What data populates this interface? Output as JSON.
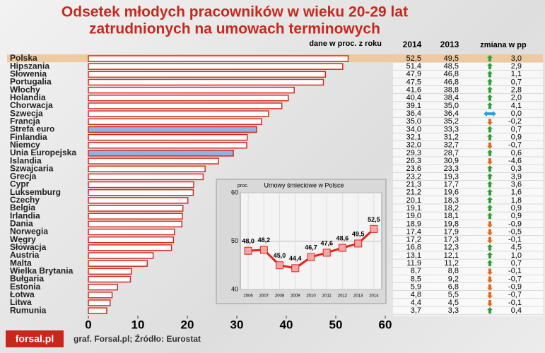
{
  "chart_data": [
    {
      "type": "hbar",
      "title_lines": [
        "Odsetek młodych pracowników w wieku 20-29 lat",
        "zatrudnionych na umowach terminowych"
      ],
      "subtitle": "dane w proc. z roku",
      "categories": [
        "Polska",
        "Hipszania",
        "Słowenia",
        "Portugalia",
        "Włochy",
        "Holandia",
        "Chorwacja",
        "Szwecja",
        "Francja",
        "Strefa euro",
        "Finlandia",
        "Niemcy",
        "Unia Europejska",
        "Islandia",
        "Szwajcaria",
        "Grecja",
        "Cypr",
        "Luksemburg",
        "Czechy",
        "Belgia",
        "Irlandia",
        "Dania",
        "Norwegia",
        "Węgry",
        "Słowacja",
        "Austria",
        "Malta",
        "Wielka Brytania",
        "Bułgaria",
        "Estonia",
        "Łotwa",
        "Litwa",
        "Rumunia"
      ],
      "series": [
        {
          "name": "2014",
          "color": "#d42a1e",
          "values": [
            52.5,
            51.4,
            47.9,
            47.5,
            41.6,
            40.4,
            39.1,
            36.4,
            35.0,
            34.0,
            32.1,
            32.0,
            29.3,
            26.3,
            23.6,
            23.2,
            21.3,
            21.2,
            20.1,
            19.1,
            19.0,
            18.9,
            17.4,
            17.2,
            16.8,
            13.1,
            11.9,
            8.7,
            8.5,
            5.9,
            4.8,
            4.4,
            3.7
          ],
          "value_labels": [
            "52,5",
            "51,4",
            "47,9",
            "47,5",
            "41,6",
            "40,4",
            "39,1",
            "36,4",
            "35,0",
            "34,0",
            "32,1",
            "32,0",
            "29,3",
            "26,3",
            "23,6",
            "23,2",
            "21,3",
            "21,2",
            "20,1",
            "19,1",
            "19,0",
            "18,9",
            "17,4",
            "17,2",
            "16,8",
            "13,1",
            "11,9",
            "8,7",
            "8,5",
            "5,9",
            "4,8",
            "4,4",
            "3,7"
          ]
        },
        {
          "name": "2013",
          "values": [
            49.5,
            48.5,
            46.8,
            46.8,
            38.8,
            38.4,
            35.0,
            36.4,
            35.2,
            33.3,
            31.2,
            32.7,
            28.7,
            30.9,
            23.3,
            19.3,
            17.7,
            19.6,
            18.3,
            18.2,
            18.1,
            19.8,
            17.9,
            17.3,
            12.3,
            12.1,
            11.2,
            8.8,
            9.2,
            6.8,
            5.5,
            4.5,
            3.3
          ],
          "value_labels": [
            "49,5",
            "48,5",
            "46,8",
            "46,8",
            "38,8",
            "38,4",
            "35,0",
            "36,4",
            "35,2",
            "33,3",
            "31,2",
            "32,7",
            "28,7",
            "30,9",
            "23,3",
            "19,3",
            "17,7",
            "19,6",
            "18,3",
            "18,2",
            "18,1",
            "19,8",
            "17,9",
            "17,3",
            "12,3",
            "12,1",
            "11,2",
            "8,8",
            "9,2",
            "6,8",
            "5,5",
            "4,5",
            "3,3"
          ]
        }
      ],
      "change": {
        "name": "zmiana w pp",
        "values": [
          3.0,
          2.9,
          1.1,
          0.7,
          2.8,
          2.0,
          4.1,
          0.0,
          -0.2,
          0.7,
          0.9,
          -0.7,
          0.6,
          -4.6,
          0.3,
          3.9,
          3.6,
          1.6,
          1.8,
          0.9,
          0.9,
          -0.9,
          -0.5,
          -0.1,
          4.5,
          1.0,
          0.7,
          -0.1,
          -0.7,
          -0.9,
          -0.7,
          -0.1,
          0.4
        ],
        "value_labels": [
          "3,0",
          "2,9",
          "1,1",
          "0,7",
          "2,8",
          "2,0",
          "4,1",
          "0,0",
          "-0,2",
          "0,7",
          "0,9",
          "-0,7",
          "0,6",
          "-4,6",
          "0,3",
          "3,9",
          "3,6",
          "1,6",
          "1,8",
          "0,9",
          "0,9",
          "-0,9",
          "-0,5",
          "-0,1",
          "4,5",
          "1,0",
          "0,7",
          "-0,1",
          "-0,7",
          "-0,9",
          "-0,7",
          "-0,1",
          "0,4"
        ],
        "up_color": "#2e9e3a",
        "down_color": "#e06a1c",
        "zero_color": "#2a9fe0"
      },
      "highlight_indices": [
        9,
        12
      ],
      "highlight_color": "#8fb4e3",
      "xlim": [
        0,
        60
      ],
      "xticks": [
        0,
        10,
        20,
        30,
        40,
        50,
        60
      ],
      "source": "graf. Forsal.pl; Źródło: Eurostat",
      "logo": "forsal.pl"
    },
    {
      "type": "line",
      "title": "Umowy śmieciowe w Polsce",
      "ylabel": "proc.",
      "color": "#e0251b",
      "x": [
        2006,
        2007,
        2008,
        2009,
        2010,
        2011,
        2012,
        2013,
        2014
      ],
      "values": [
        48.0,
        48.2,
        45.0,
        44.4,
        46.7,
        47.6,
        48.6,
        49.5,
        52.5
      ],
      "value_labels": [
        "48,0",
        "48,2",
        "45,0",
        "44,4",
        "46,7",
        "47,6",
        "48,6",
        "49,5",
        "52,5"
      ],
      "xlim": [
        2005.5,
        2014.5
      ],
      "ylim": [
        40,
        60
      ],
      "yticks": [
        40,
        50,
        60
      ]
    }
  ]
}
